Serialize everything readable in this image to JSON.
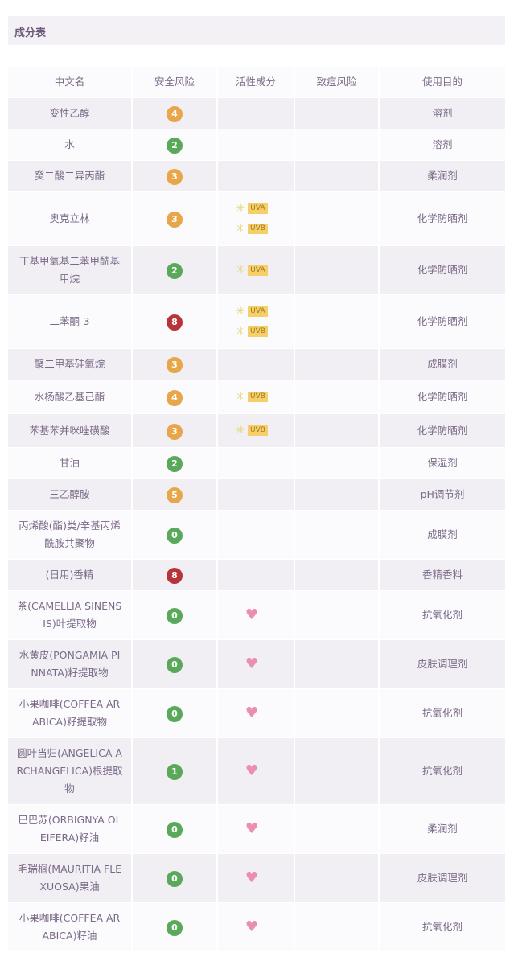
{
  "title": "成分表",
  "headers": [
    "中文名",
    "安全风险",
    "活性成分",
    "致痘风险",
    "使用目的"
  ],
  "colors": {
    "low": "#5aa85a",
    "mid": "#e8a64a",
    "high": "#b8343a",
    "heart": "#ea8fb2"
  },
  "rows": [
    {
      "name": "变性乙醇",
      "risk": "4",
      "active": [],
      "acne": "",
      "purpose": "溶剂"
    },
    {
      "name": "水",
      "risk": "2",
      "active": [],
      "acne": "",
      "purpose": "溶剂"
    },
    {
      "name": "癸二酸二异丙酯",
      "risk": "3",
      "active": [],
      "acne": "",
      "purpose": "柔润剂"
    },
    {
      "name": "奥克立林",
      "risk": "3",
      "active": [
        "UVA",
        "UVB"
      ],
      "acne": "",
      "purpose": "化学防晒剂"
    },
    {
      "name": "丁基甲氧基二苯甲酰基甲烷",
      "risk": "2",
      "active": [
        "UVA"
      ],
      "acne": "",
      "purpose": "化学防晒剂"
    },
    {
      "name": "二苯酮-3",
      "risk": "8",
      "active": [
        "UVA",
        "UVB"
      ],
      "acne": "",
      "purpose": "化学防晒剂"
    },
    {
      "name": "聚二甲基硅氧烷",
      "risk": "3",
      "active": [],
      "acne": "",
      "purpose": "成膜剂"
    },
    {
      "name": "水杨酸乙基己酯",
      "risk": "4",
      "active": [
        "UVB"
      ],
      "acne": "",
      "purpose": "化学防晒剂"
    },
    {
      "name": "苯基苯并咪唑磺酸",
      "risk": "3",
      "active": [
        "UVB"
      ],
      "acne": "",
      "purpose": "化学防晒剂"
    },
    {
      "name": "甘油",
      "risk": "2",
      "active": [],
      "acne": "",
      "purpose": "保湿剂"
    },
    {
      "name": "三乙醇胺",
      "risk": "5",
      "active": [],
      "acne": "",
      "purpose": "pH调节剂"
    },
    {
      "name": "丙烯酸(酯)类/辛基丙烯酰胺共聚物",
      "risk": "0",
      "active": [],
      "acne": "",
      "purpose": "成膜剂"
    },
    {
      "name": "(日用)香精",
      "risk": "8",
      "active": [],
      "acne": "",
      "purpose": "香精香料"
    },
    {
      "name": "茶(CAMELLIA SINENSIS)叶提取物",
      "risk": "0",
      "active": [
        "heart"
      ],
      "acne": "",
      "purpose": "抗氧化剂"
    },
    {
      "name": "水黄皮(PONGAMIA PINNATA)籽提取物",
      "risk": "0",
      "active": [
        "heart"
      ],
      "acne": "",
      "purpose": "皮肤调理剂"
    },
    {
      "name": "小果咖啡(COFFEA ARABICA)籽提取物",
      "risk": "0",
      "active": [
        "heart"
      ],
      "acne": "",
      "purpose": "抗氧化剂"
    },
    {
      "name": "圆叶当归(ANGELICA ARCHANGELICA)根提取物",
      "risk": "1",
      "active": [
        "heart"
      ],
      "acne": "",
      "purpose": "抗氧化剂"
    },
    {
      "name": "巴巴苏(ORBIGNYA OLEIFERA)籽油",
      "risk": "0",
      "active": [
        "heart"
      ],
      "acne": "",
      "purpose": "柔润剂"
    },
    {
      "name": "毛瑞榈(MAURITIA FLEXUOSA)果油",
      "risk": "0",
      "active": [
        "heart"
      ],
      "acne": "",
      "purpose": "皮肤调理剂"
    },
    {
      "name": "小果咖啡(COFFEA ARABICA)籽油",
      "risk": "0",
      "active": [
        "heart"
      ],
      "acne": "",
      "purpose": "抗氧化剂"
    }
  ]
}
